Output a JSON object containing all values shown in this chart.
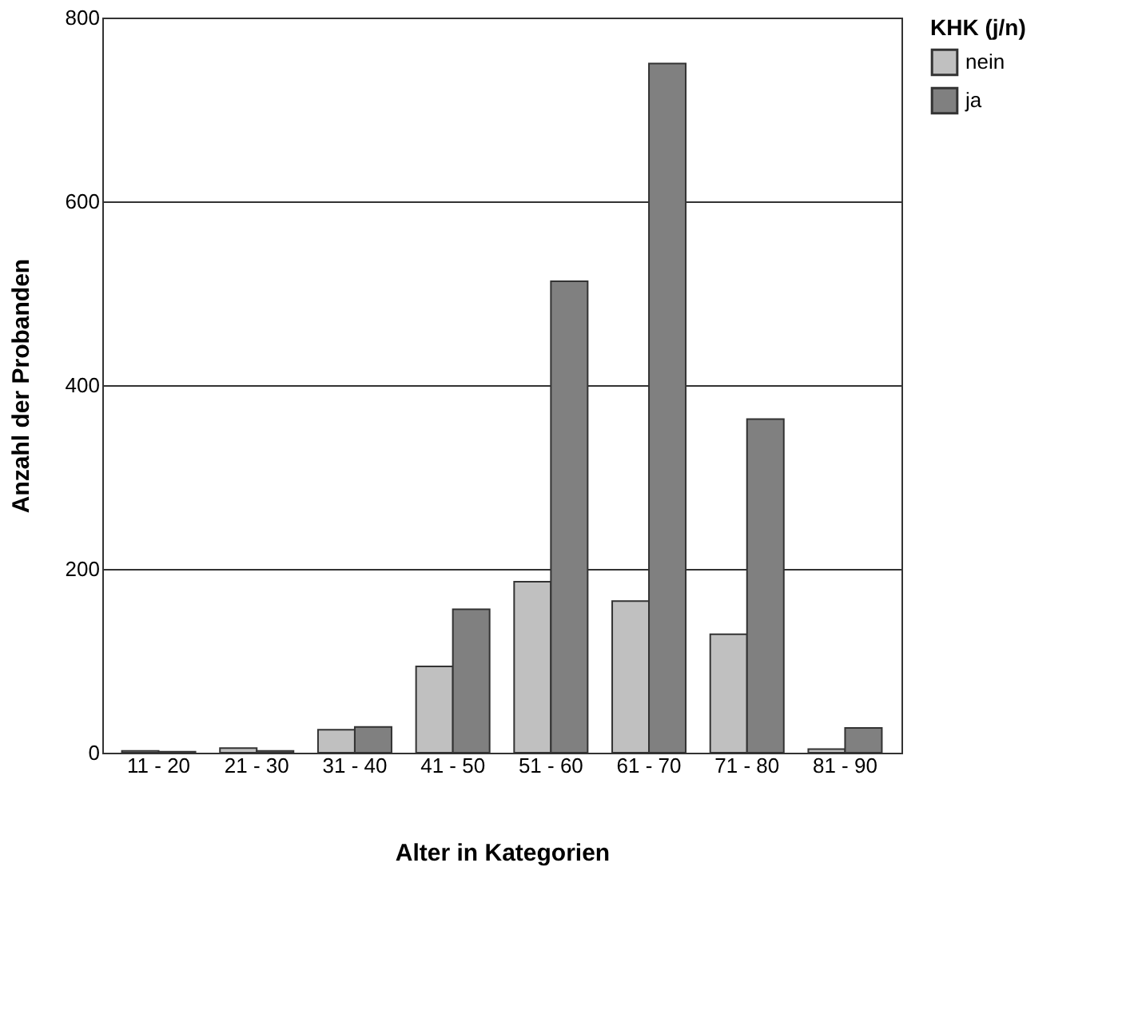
{
  "chart_data": {
    "type": "bar",
    "xlabel": "Alter in Kategorien",
    "ylabel": "Anzahl der Probanden",
    "legend_title": "KHK (j/n)",
    "categories": [
      "11 - 20",
      "21 - 30",
      "31 - 40",
      "41 - 50",
      "51 - 60",
      "61 - 70",
      "71 - 80",
      "81 - 90"
    ],
    "series": [
      {
        "name": "nein",
        "color": "#c0c0c0",
        "values": [
          2,
          5,
          25,
          94,
          186,
          165,
          129,
          4
        ]
      },
      {
        "name": "ja",
        "color": "#808080",
        "values": [
          1,
          2,
          28,
          156,
          513,
          750,
          363,
          27
        ]
      }
    ],
    "ylim": [
      0,
      800
    ],
    "yticks": [
      0,
      200,
      400,
      600,
      800
    ],
    "grid": "y",
    "legend": "right"
  }
}
